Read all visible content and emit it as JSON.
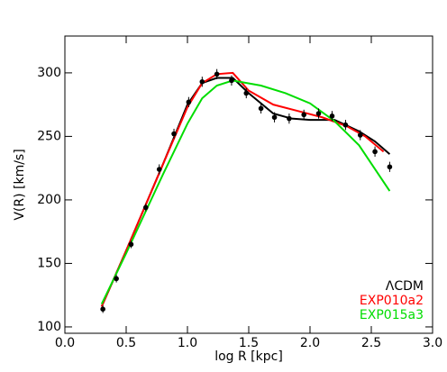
{
  "chart_data": {
    "type": "line",
    "xlabel": "log R [kpc]",
    "ylabel": "V(R) [km/s]",
    "xlim": [
      0.0,
      3.0
    ],
    "ylim": [
      95,
      329
    ],
    "xticks": [
      {
        "value": 0,
        "label": "0.0"
      },
      {
        "value": 0.5,
        "label": "0.5"
      },
      {
        "value": 1,
        "label": "1.0"
      },
      {
        "value": 1.5,
        "label": "1.5"
      },
      {
        "value": 2,
        "label": "2.0"
      },
      {
        "value": 2.5,
        "label": "2.5"
      },
      {
        "value": 3,
        "label": "3.0"
      }
    ],
    "yticks": [
      100,
      150,
      200,
      250,
      300
    ],
    "legend": "lower right",
    "points": {
      "color": "#000000",
      "x": [
        0.31,
        0.42,
        0.54,
        0.66,
        0.77,
        0.89,
        1.01,
        1.12,
        1.24,
        1.36,
        1.48,
        1.6,
        1.71,
        1.83,
        1.95,
        2.07,
        2.18,
        2.29,
        2.41,
        2.53,
        2.65
      ],
      "values": [
        114,
        138,
        165,
        194,
        224,
        252,
        277,
        293,
        299,
        294,
        284,
        272,
        265,
        264,
        267,
        268,
        266,
        259,
        251,
        238,
        226
      ],
      "errors": [
        3,
        3,
        3,
        3,
        4,
        4,
        4,
        4,
        4,
        4,
        4,
        4,
        4,
        4,
        4,
        4,
        4,
        4,
        4,
        4,
        4
      ]
    },
    "series": [
      {
        "name": "ΛCDM",
        "color": "#000000",
        "x": [
          0.3,
          0.5,
          0.8,
          1.0,
          1.12,
          1.24,
          1.37,
          1.5,
          1.7,
          1.85,
          2.0,
          2.2,
          2.4,
          2.53,
          2.65
        ],
        "values": [
          116,
          160,
          228,
          275,
          292,
          296,
          296,
          284,
          268,
          264,
          263,
          263,
          254,
          246,
          236
        ]
      },
      {
        "name": "EXP010a2",
        "color": "#ff0000",
        "x": [
          0.3,
          0.5,
          0.8,
          1.0,
          1.12,
          1.24,
          1.37,
          1.5,
          1.7,
          1.9,
          2.1,
          2.3,
          2.45,
          2.6
        ],
        "values": [
          116,
          160,
          228,
          273,
          292,
          299,
          300,
          286,
          275,
          270,
          265,
          258,
          250,
          238
        ]
      },
      {
        "name": "EXP015a3",
        "color": "#00dd00",
        "x": [
          0.3,
          0.5,
          0.8,
          1.0,
          1.12,
          1.24,
          1.37,
          1.6,
          1.8,
          2.0,
          2.2,
          2.4,
          2.65
        ],
        "values": [
          118,
          158,
          220,
          260,
          280,
          290,
          294,
          290,
          284,
          276,
          262,
          243,
          207
        ]
      }
    ]
  }
}
